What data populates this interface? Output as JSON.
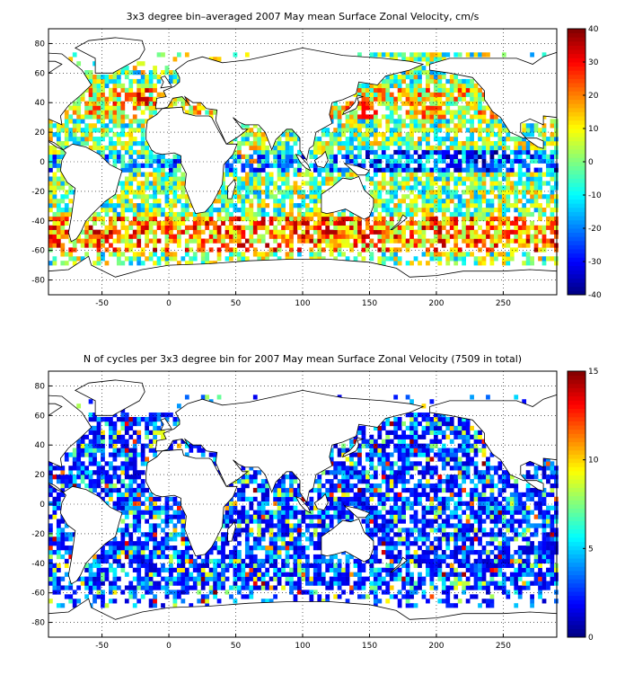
{
  "panels": [
    {
      "id": "velocity",
      "title": "3x3 degree bin–averaged 2007 May mean Surface Zonal Velocity, cm/s",
      "x_ticks": [
        "-50",
        "0",
        "50",
        "100",
        "150",
        "200",
        "250"
      ],
      "y_ticks": [
        "80",
        "60",
        "40",
        "20",
        "0",
        "-20",
        "-40",
        "-60",
        "-80"
      ],
      "colorbar_ticks": [
        "40",
        "30",
        "20",
        "10",
        "0",
        "-10",
        "-20",
        "-30",
        "-40"
      ]
    },
    {
      "id": "cycles",
      "title": "N of cycles per 3x3 degree bin for 2007 May mean Surface Zonal Velocity (7509 in total)",
      "x_ticks": [
        "-50",
        "0",
        "50",
        "100",
        "150",
        "200",
        "250"
      ],
      "y_ticks": [
        "80",
        "60",
        "40",
        "20",
        "0",
        "-20",
        "-40",
        "-60",
        "-80"
      ],
      "colorbar_ticks": [
        "15",
        "10",
        "5",
        "0"
      ]
    }
  ],
  "chart_data": [
    {
      "type": "heatmap",
      "title": "3x3 degree bin–averaged 2007 May mean Surface Zonal Velocity, cm/s",
      "xlim": [
        -90,
        290
      ],
      "ylim": [
        -90,
        90
      ],
      "bin_size_deg": 3,
      "colorbar_range": [
        -40,
        40
      ],
      "colormap": "jet",
      "grid": true,
      "sample_bins": [
        {
          "lon": -30,
          "lat": 42,
          "value": 25
        },
        {
          "lon": -20,
          "lat": 45,
          "value": 35
        },
        {
          "lon": 30,
          "lat": -40,
          "value": 30
        },
        {
          "lon": 100,
          "lat": -45,
          "value": 35
        },
        {
          "lon": 150,
          "lat": 35,
          "value": 30
        },
        {
          "lon": 210,
          "lat": 3,
          "value": -30
        },
        {
          "lon": 240,
          "lat": 0,
          "value": -25
        },
        {
          "lon": -30,
          "lat": 0,
          "value": -20
        },
        {
          "lon": 60,
          "lat": 5,
          "value": 20
        },
        {
          "lon": 180,
          "lat": 40,
          "value": 15
        }
      ]
    },
    {
      "type": "heatmap",
      "title": "N of cycles per 3x3 degree bin for 2007 May mean Surface Zonal Velocity (7509 in total)",
      "xlim": [
        -90,
        290
      ],
      "ylim": [
        -90,
        90
      ],
      "bin_size_deg": 3,
      "colorbar_range": [
        0,
        15
      ],
      "colormap": "jet",
      "grid": true,
      "total_cycles": 7509,
      "sample_bins": [
        {
          "lon": 140,
          "lat": 37,
          "value": 14
        },
        {
          "lon": -10,
          "lat": 45,
          "value": 9
        },
        {
          "lon": 0,
          "lat": 72,
          "value": 3
        },
        {
          "lon": 200,
          "lat": 20,
          "value": 2
        },
        {
          "lon": 60,
          "lat": -30,
          "value": 4
        }
      ]
    }
  ],
  "colors": {
    "land": "#ffffff",
    "coastline": "#000000",
    "grid": "#000000"
  }
}
